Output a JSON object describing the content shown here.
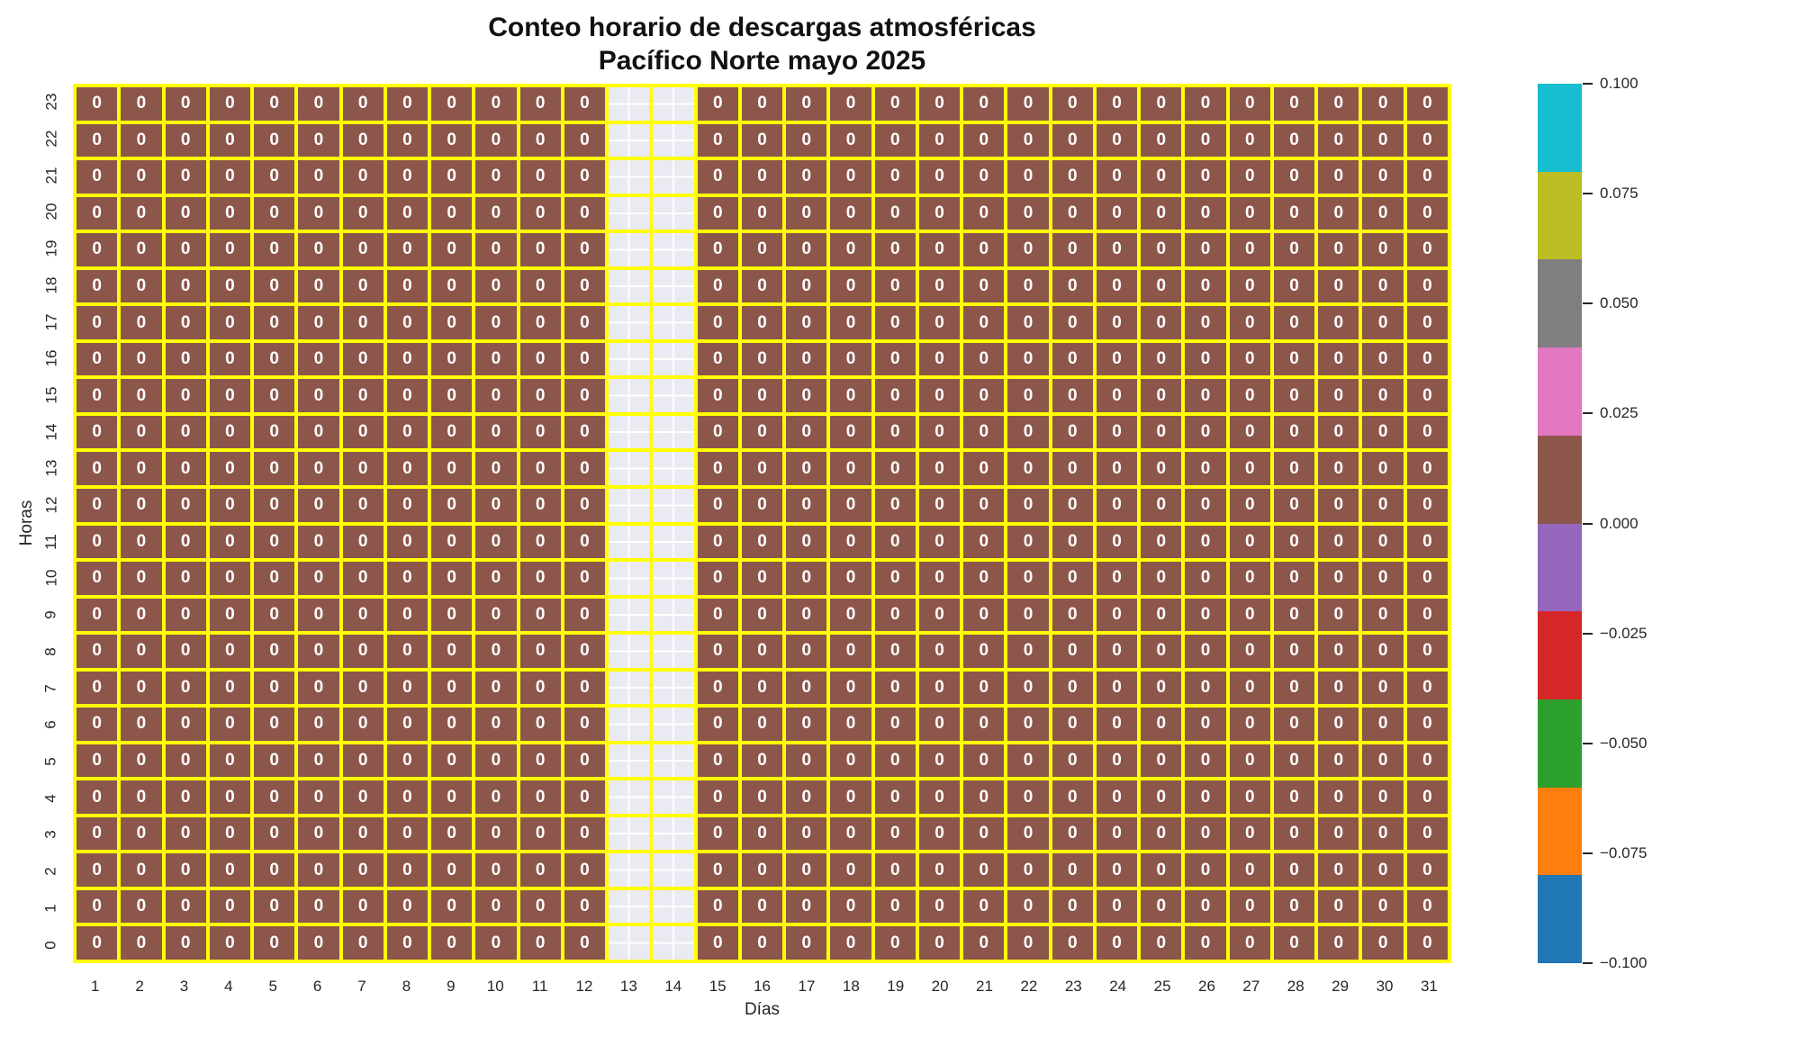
{
  "chart_data": {
    "type": "heatmap",
    "title_line1": "Conteo horario de descargas atmosféricas",
    "title_line2": "Pacífico Norte mayo 2025",
    "xlabel": "Días",
    "ylabel": "Horas",
    "x_tick_labels": [
      "1",
      "2",
      "3",
      "4",
      "5",
      "6",
      "7",
      "8",
      "9",
      "10",
      "11",
      "12",
      "13",
      "14",
      "15",
      "16",
      "17",
      "18",
      "19",
      "20",
      "21",
      "22",
      "23",
      "24",
      "25",
      "26",
      "27",
      "28",
      "29",
      "30",
      "31"
    ],
    "y_tick_labels_top_to_bottom": [
      "23",
      "22",
      "21",
      "20",
      "19",
      "18",
      "17",
      "16",
      "15",
      "14",
      "13",
      "12",
      "11",
      "10",
      "9",
      "8",
      "7",
      "6",
      "5",
      "4",
      "3",
      "2",
      "1",
      "0"
    ],
    "cell_annotation": "0",
    "cell_value": 0,
    "missing_days": [
      "13",
      "14"
    ],
    "data_description": "24 hours (rows, 23 at top to 0 at bottom) x 31 days (columns); every recorded cell value is 0; days 13 and 14 contain no data (masked cells showing plot background).",
    "grid": "yellow cell borders; masked cells show light background with white gridline cross",
    "colors": {
      "cell_fill": "#8c564b",
      "cell_text": "#ffffff",
      "grid_lines": "#ffff00",
      "masked_cell_fill": "#eaeaf2",
      "masked_cell_gridline": "#ffffff",
      "tick_label": "#262626",
      "title": "#111111",
      "background": "#ffffff"
    },
    "colorbar": {
      "colormap_name": "tab10 (10 discrete bins)",
      "vmin": -0.1,
      "vmax": 0.1,
      "tick_labels_top_to_bottom": [
        "0.100",
        "0.075",
        "0.050",
        "0.025",
        "0.000",
        "−0.025",
        "−0.050",
        "−0.075",
        "−0.100"
      ],
      "segment_colors_top_to_bottom": [
        "#17becf",
        "#bcbd22",
        "#7f7f7f",
        "#e377c2",
        "#8c564b",
        "#9467bd",
        "#d62728",
        "#2ca02c",
        "#ff7f0e",
        "#1f77b4"
      ],
      "position": "right"
    },
    "legend": "none"
  }
}
